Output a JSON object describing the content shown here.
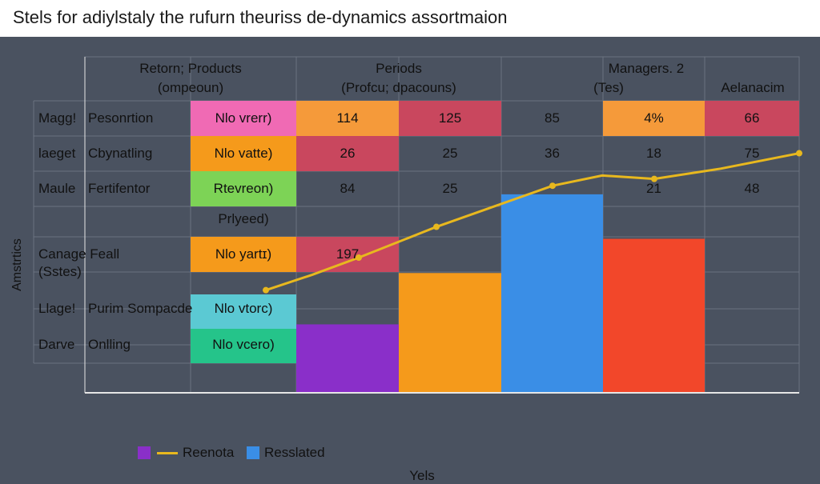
{
  "title": "Stels for adiylstaly the rufurn theuriss de-dynamics assortmaion",
  "colors": {
    "background": "#4a5260",
    "grid": "#6b7380",
    "line": "#e8b81e",
    "purple": "#8a2fc9",
    "orange": "#f59a1b",
    "blue": "#3a8ee6",
    "red": "#f2472a"
  },
  "chart_data": {
    "type": "bar",
    "headers": {
      "col1_line1": "Retorn; Products",
      "col1_line2": "(ompeoun)",
      "col2_line1": "Periods",
      "col2_line2": "(Profcu; dpacouns)",
      "col3_line1": "Managers. 2",
      "col3_line2": "(Tes)",
      "col4": "Aelanacim"
    },
    "rows": [
      {
        "code": "Magg!",
        "name": "Pesonrtion",
        "tag": "Nlo vrerr)",
        "tag_color": "#f06ab4",
        "cells": [
          {
            "text": "114",
            "color": "#f59a3a"
          },
          {
            "text": "125",
            "color": "#c9475e"
          },
          {
            "text": "85",
            "color": ""
          },
          {
            "text": "4%",
            "color": "#f59a3a"
          },
          {
            "text": "66",
            "color": "#c9475e"
          }
        ]
      },
      {
        "code": "laeget",
        "name": "Cbynatling",
        "tag": "Nlo vatte)",
        "tag_color": "#f59a1b",
        "cells": [
          {
            "text": "26",
            "color": "#c9475e"
          },
          {
            "text": "25",
            "color": ""
          },
          {
            "text": "36",
            "color": ""
          },
          {
            "text": "18",
            "color": ""
          },
          {
            "text": "75",
            "color": ""
          }
        ]
      },
      {
        "code": "Maule",
        "name": "Fertifentor",
        "tag": "Rtevreon)",
        "tag_color": "#7dd356",
        "cells": [
          {
            "text": "84",
            "color": ""
          },
          {
            "text": "25",
            "color": ""
          },
          {
            "text": "",
            "color": ""
          },
          {
            "text": "21",
            "color": ""
          },
          {
            "text": "48",
            "color": ""
          }
        ]
      },
      {
        "code": "",
        "name": "",
        "tag": "Prlyeed)",
        "tag_color": "",
        "cells": [
          {
            "text": "",
            "color": ""
          },
          {
            "text": "",
            "color": ""
          },
          {
            "text": "",
            "color": ""
          },
          {
            "text": "",
            "color": ""
          },
          {
            "text": "",
            "color": ""
          }
        ]
      },
      {
        "code": "Canage Feall",
        "code2": "(Sstes)",
        "name": "",
        "tag": "Nlo yartɪ)",
        "tag_color": "#f59a1b",
        "cells": [
          {
            "text": "197",
            "color": "#c9475e"
          },
          {
            "text": "",
            "color": ""
          },
          {
            "text": "",
            "color": ""
          },
          {
            "text": "",
            "color": ""
          },
          {
            "text": "",
            "color": ""
          }
        ]
      },
      {
        "code": "Llage!",
        "name": "Purim Sompacde",
        "tag": "Nlo vtorc)",
        "tag_color": "#5bc9d3",
        "cells": [
          {
            "text": "",
            "color": ""
          },
          {
            "text": "",
            "color": ""
          },
          {
            "text": "",
            "color": ""
          },
          {
            "text": "",
            "color": ""
          },
          {
            "text": "",
            "color": ""
          }
        ]
      },
      {
        "code": "Darve",
        "name": "Onlling",
        "tag": "Nlo vcero)",
        "tag_color": "#25c48a",
        "cells": [
          {
            "text": "",
            "color": ""
          },
          {
            "text": "",
            "color": ""
          },
          {
            "text": "",
            "color": ""
          },
          {
            "text": "",
            "color": ""
          },
          {
            "text": "",
            "color": ""
          }
        ]
      }
    ],
    "bars": [
      {
        "value": 2,
        "color": "#8a2fc9"
      },
      {
        "value": 3.5,
        "color": "#f59a1b"
      },
      {
        "value": 5.8,
        "color": "#3a8ee6"
      },
      {
        "value": 4.5,
        "color": "#f2472a"
      }
    ],
    "line": {
      "values": [
        3.0,
        3.45,
        3.95,
        4.85,
        6.05,
        6.35,
        6.25,
        6.55,
        7.0
      ]
    },
    "ylim": [
      0,
      9
    ],
    "xlabel": "Yels",
    "ylabel": "Amstrtics",
    "legend": [
      {
        "label": "Reenota",
        "color": "#8a2fc9",
        "line": true
      },
      {
        "label": "Resslated",
        "color": "#3a8ee6",
        "line": false
      }
    ]
  }
}
